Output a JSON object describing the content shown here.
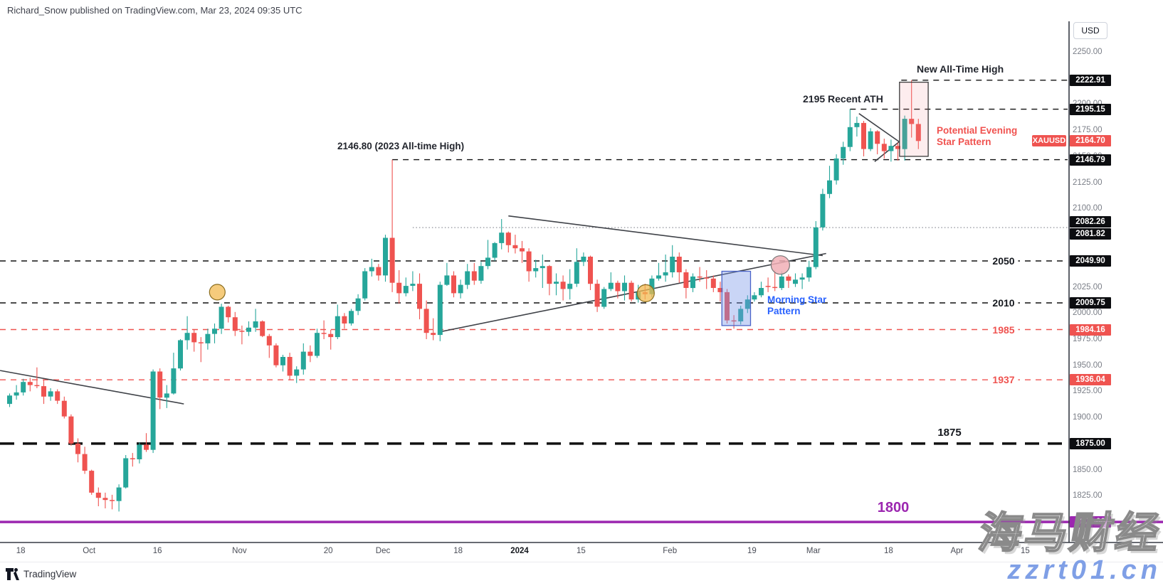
{
  "header": {
    "title": "Richard_Snow published on TradingView.com, Mar 23, 2024 09:35 UTC"
  },
  "price_axis": {
    "currency": "USD",
    "plain_labels": [
      "2250.00",
      "2200.00",
      "2175.00",
      "2150.00",
      "2125.00",
      "2100.00",
      "2025.00",
      "2000.00",
      "1975.00",
      "1950.00",
      "1925.00",
      "1900.00",
      "1850.00",
      "1825.00"
    ],
    "level_labels_black": [
      "2222.91",
      "2195.15",
      "2146.79",
      "2082.26",
      "2081.82",
      "2049.90",
      "2009.75",
      "1875.00"
    ],
    "level_labels_red": [
      "1984.16",
      "1936.04"
    ],
    "level_labels_purple": [
      "1800.00"
    ],
    "last_price": {
      "symbol": "XAUUSD",
      "value": "2164.70"
    }
  },
  "time_axis": {
    "ticks": [
      [
        "18",
        2
      ],
      [
        "Oct",
        12
      ],
      [
        "16",
        22
      ],
      [
        "Nov",
        34
      ],
      [
        "20",
        47
      ],
      [
        "Dec",
        55
      ],
      [
        "18",
        66
      ],
      [
        "2024",
        75
      ],
      [
        "15",
        84
      ],
      [
        "Feb",
        97
      ],
      [
        "19",
        109
      ],
      [
        "Mar",
        118
      ],
      [
        "18",
        129
      ],
      [
        "Apr",
        139
      ],
      [
        "15",
        149
      ]
    ],
    "bold_labels": [
      "2024"
    ]
  },
  "chart_data": {
    "type": "candlestick",
    "symbol": "XAUUSD",
    "currency": "USD",
    "timeframe": "daily",
    "date_range": "Sep 14 2023 - Mar 22 2024",
    "ylim": [
      1780.3,
      2279.3
    ],
    "up_color": "#26a69a",
    "down_color": "#ef5350",
    "candles": [
      [
        1913,
        1923,
        1910,
        1921
      ],
      [
        1921,
        1931,
        1917,
        1924
      ],
      [
        1924,
        1937,
        1921,
        1934
      ],
      [
        1934,
        1938,
        1925,
        1931
      ],
      [
        1931,
        1948,
        1928,
        1930
      ],
      [
        1930,
        1936,
        1913,
        1920
      ],
      [
        1920,
        1928,
        1916,
        1925
      ],
      [
        1925,
        1927,
        1913,
        1916
      ],
      [
        1916,
        1920,
        1899,
        1901
      ],
      [
        1901,
        1903,
        1873,
        1875
      ],
      [
        1875,
        1880,
        1857,
        1865
      ],
      [
        1865,
        1872,
        1846,
        1849
      ],
      [
        1849,
        1850,
        1826,
        1828
      ],
      [
        1828,
        1833,
        1815,
        1823
      ],
      [
        1823,
        1828,
        1813,
        1821
      ],
      [
        1821,
        1826,
        1812,
        1820
      ],
      [
        1820,
        1836,
        1810,
        1833
      ],
      [
        1833,
        1864,
        1832,
        1861
      ],
      [
        1861,
        1866,
        1853,
        1860
      ],
      [
        1860,
        1876,
        1856,
        1874
      ],
      [
        1874,
        1885,
        1867,
        1869
      ],
      [
        1869,
        1946,
        1866,
        1944
      ],
      [
        1944,
        1947,
        1908,
        1919
      ],
      [
        1919,
        1931,
        1909,
        1923
      ],
      [
        1923,
        1962,
        1922,
        1947
      ],
      [
        1947,
        1975,
        1945,
        1974
      ],
      [
        1974,
        1997,
        1965,
        1981
      ],
      [
        1981,
        1984,
        1963,
        1972
      ],
      [
        1972,
        1977,
        1953,
        1971
      ],
      [
        1971,
        1985,
        1965,
        1980
      ],
      [
        1980,
        1990,
        1971,
        1985
      ],
      [
        1985,
        2009,
        1980,
        2006
      ],
      [
        2006,
        2007,
        1991,
        1996
      ],
      [
        1996,
        2001,
        1978,
        1983
      ],
      [
        1983,
        1988,
        1970,
        1982
      ],
      [
        1982,
        1992,
        1978,
        1986
      ],
      [
        1986,
        2004,
        1982,
        1992
      ],
      [
        1992,
        1993,
        1977,
        1978
      ],
      [
        1978,
        1980,
        1957,
        1969
      ],
      [
        1969,
        1971,
        1948,
        1950
      ],
      [
        1950,
        1960,
        1944,
        1958
      ],
      [
        1958,
        1962,
        1936,
        1940
      ],
      [
        1940,
        1949,
        1933,
        1946
      ],
      [
        1946,
        1971,
        1941,
        1963
      ],
      [
        1963,
        1969,
        1953,
        1959
      ],
      [
        1959,
        1985,
        1957,
        1981
      ],
      [
        1981,
        1993,
        1975,
        1980
      ],
      [
        1980,
        1984,
        1965,
        1977
      ],
      [
        1977,
        2008,
        1975,
        1997
      ],
      [
        1997,
        2000,
        1985,
        1990
      ],
      [
        1990,
        2004,
        1988,
        2002
      ],
      [
        2002,
        2018,
        1998,
        2014
      ],
      [
        2014,
        2043,
        2012,
        2040
      ],
      [
        2040,
        2052,
        2035,
        2044
      ],
      [
        2044,
        2047,
        2031,
        2036
      ],
      [
        2036,
        2075,
        2030,
        2072
      ],
      [
        2072,
        2146.8,
        2020,
        2029
      ],
      [
        2029,
        2041,
        2009,
        2019
      ],
      [
        2019,
        2034,
        2016,
        2026
      ],
      [
        2026,
        2040,
        2021,
        2028
      ],
      [
        2028,
        2038,
        1994,
        2004
      ],
      [
        2004,
        2012,
        1975,
        1981
      ],
      [
        1981,
        1995,
        1974,
        1979
      ],
      [
        1979,
        2030,
        1973,
        2027
      ],
      [
        2027,
        2048,
        2026,
        2036
      ],
      [
        2036,
        2040,
        2015,
        2019
      ],
      [
        2019,
        2032,
        2014,
        2027
      ],
      [
        2027,
        2047,
        2023,
        2040
      ],
      [
        2040,
        2048,
        2027,
        2031
      ],
      [
        2031,
        2049,
        2028,
        2045
      ],
      [
        2045,
        2070,
        2042,
        2053
      ],
      [
        2053,
        2068,
        2050,
        2067
      ],
      [
        2067,
        2090,
        2061,
        2077
      ],
      [
        2077,
        2078,
        2058,
        2065
      ],
      [
        2065,
        2075,
        2057,
        2062
      ],
      [
        2062,
        2069,
        2048,
        2059
      ],
      [
        2059,
        2062,
        2030,
        2040
      ],
      [
        2040,
        2051,
        2034,
        2043
      ],
      [
        2043,
        2056,
        2024,
        2045
      ],
      [
        2045,
        2046,
        2017,
        2028
      ],
      [
        2028,
        2038,
        2017,
        2030
      ],
      [
        2030,
        2036,
        2012,
        2023
      ],
      [
        2023,
        2042,
        2013,
        2028
      ],
      [
        2028,
        2062,
        2025,
        2049
      ],
      [
        2049,
        2058,
        2045,
        2054
      ],
      [
        2054,
        2055,
        2022,
        2028
      ],
      [
        2028,
        2032,
        2001,
        2006
      ],
      [
        2006,
        2025,
        2004,
        2023
      ],
      [
        2023,
        2039,
        2021,
        2029
      ],
      [
        2029,
        2031,
        2014,
        2021
      ],
      [
        2021,
        2036,
        2012,
        2029
      ],
      [
        2029,
        2031,
        2011,
        2013
      ],
      [
        2013,
        2027,
        2010,
        2020
      ],
      [
        2020,
        2028,
        2013,
        2018
      ],
      [
        2018,
        2036,
        2015,
        2033
      ],
      [
        2033,
        2048,
        2031,
        2036
      ],
      [
        2036,
        2056,
        2030,
        2039
      ],
      [
        2039,
        2065,
        2034,
        2054
      ],
      [
        2054,
        2058,
        2029,
        2039
      ],
      [
        2039,
        2042,
        2014,
        2024
      ],
      [
        2024,
        2038,
        2020,
        2035
      ],
      [
        2035,
        2044,
        2030,
        2034
      ],
      [
        2034,
        2041,
        2023,
        2033
      ],
      [
        2033,
        2036,
        2020,
        2024
      ],
      [
        2024,
        2030,
        2011,
        2020
      ],
      [
        2020,
        2023,
        1990,
        1993
      ],
      [
        1993,
        1998,
        1985,
        1992
      ],
      [
        1992,
        2007,
        1989,
        2004
      ],
      [
        2004,
        2017,
        2000,
        2013
      ],
      [
        2013,
        2020,
        2011,
        2017
      ],
      [
        2017,
        2030,
        2015,
        2024
      ],
      [
        2026,
        2034,
        2020,
        2025
      ],
      [
        2025,
        2041,
        2021,
        2024
      ],
      [
        2024,
        2040,
        2022,
        2035
      ],
      [
        2035,
        2037,
        2024,
        2031
      ],
      [
        2028,
        2038,
        2025,
        2032
      ],
      [
        2032,
        2038,
        2023,
        2034
      ],
      [
        2034,
        2050,
        2030,
        2044
      ],
      [
        2044,
        2088,
        2042,
        2082
      ],
      [
        2082,
        2119,
        2079,
        2114
      ],
      [
        2114,
        2141,
        2110,
        2127
      ],
      [
        2127,
        2152,
        2123,
        2148
      ],
      [
        2148,
        2164,
        2142,
        2159
      ],
      [
        2159,
        2195.2,
        2155,
        2178
      ],
      [
        2178,
        2188,
        2169,
        2182
      ],
      [
        2182,
        2184,
        2150,
        2157
      ],
      [
        2157,
        2177,
        2155,
        2174
      ],
      [
        2174,
        2175,
        2152,
        2162
      ],
      [
        2162,
        2167,
        2148,
        2155
      ],
      [
        2155,
        2166,
        2145,
        2160
      ],
      [
        2160,
        2163,
        2146,
        2157
      ],
      [
        2157,
        2189,
        2146,
        2186
      ],
      [
        2186,
        2222.9,
        2168,
        2181
      ],
      [
        2181,
        2186,
        2157,
        2164.7
      ]
    ],
    "levels": [
      {
        "price": 2222.91,
        "color": "black",
        "style": "dashed",
        "start_idx": 130.5
      },
      {
        "price": 2195.15,
        "color": "black",
        "style": "dashed",
        "start_idx": 123
      },
      {
        "price": 2146.79,
        "color": "black",
        "style": "dashed",
        "start_idx": 56
      },
      {
        "price": 2081.82,
        "color": "gray",
        "style": "dotted",
        "start_idx": 59
      },
      {
        "price": 2049.9,
        "color": "black",
        "style": "dashed",
        "start_idx": null,
        "inline_label": "2050"
      },
      {
        "price": 2009.75,
        "color": "black",
        "style": "dashed",
        "start_idx": null,
        "inline_label": "2010"
      },
      {
        "price": 1984.16,
        "color": "red",
        "style": "dashed",
        "start_idx": null,
        "inline_label": "1985"
      },
      {
        "price": 1936.04,
        "color": "red",
        "style": "dashed",
        "start_idx": null,
        "inline_label": "1937"
      },
      {
        "price": 1875.0,
        "color": "black",
        "style": "heavy-dashed",
        "start_idx": null,
        "inline_label": "1875"
      },
      {
        "price": 1800.0,
        "color": "purple",
        "style": "solid",
        "start_idx": null,
        "inline_label": "1800",
        "full_width": true
      }
    ],
    "trendlines": [
      {
        "name": "september-downtrend-line",
        "p1": [
          -1.4,
          1945
        ],
        "p2": [
          25.5,
          1913
        ]
      },
      {
        "name": "triangle-upper-line",
        "p1": [
          73,
          2093
        ],
        "p2": [
          119,
          2055
        ]
      },
      {
        "name": "triangle-lower-line",
        "p1": [
          63,
          1982
        ],
        "p2": [
          119.5,
          2057
        ]
      },
      {
        "name": "pennant-upper-line",
        "p1": [
          124.3,
          2191
        ],
        "p2": [
          130.2,
          2164
        ]
      },
      {
        "name": "pennant-lower-line",
        "p1": [
          126.6,
          2145
        ],
        "p2": [
          130.2,
          2164
        ]
      }
    ],
    "boxes": [
      {
        "name": "morning-star-box",
        "idx1": 104.6,
        "idx2": 108.8,
        "price_top": 2040,
        "price_bottom": 1988,
        "fill": "rgba(121,150,233,0.40)",
        "stroke": "#4a63c8"
      },
      {
        "name": "evening-star-box",
        "idx1": 130.6,
        "idx2": 134.8,
        "price_top": 2221,
        "price_bottom": 2150,
        "fill": "rgba(242,143,148,0.16)",
        "stroke": "#3a3a3a"
      }
    ],
    "circles": [
      {
        "name": "support-touch-circle-1",
        "idx": 30.4,
        "price": 2020,
        "r": 11,
        "fill": "rgba(242,185,80,0.75), ",
        "stroke": "#8a6d1f"
      },
      {
        "name": "support-touch-circle-2",
        "idx": 93.1,
        "price": 2019,
        "r": 12,
        "fill": "rgba(242,185,80,0.75)",
        "stroke": "#8a6d1f"
      },
      {
        "name": "trendline-cross-circle",
        "idx": 112.8,
        "price": 2046,
        "r": 13,
        "fill": "rgba(241,175,182,0.85)",
        "stroke": "#777777"
      }
    ],
    "annotations": [
      {
        "id": "new-ath",
        "text": "New All-Time High",
        "color": "#23262e"
      },
      {
        "id": "recent-ath",
        "text": "2195 Recent ATH",
        "color": "#23262e"
      },
      {
        "id": "ath-2023",
        "text": "2146.80 (2023 All-time High)",
        "color": "#23262e"
      },
      {
        "id": "evening-star",
        "text": "Potential Evening\nStar Pattern",
        "color": "#f0524f"
      },
      {
        "id": "morning-star",
        "text": "Morning Star\nPattern",
        "color": "#2962ff"
      }
    ]
  },
  "watermark": {
    "line1": "海马财经",
    "line2": "zzrt01.cn",
    "accent_color": "#7f9fe6"
  },
  "footer": {
    "brand": "TradingView"
  }
}
